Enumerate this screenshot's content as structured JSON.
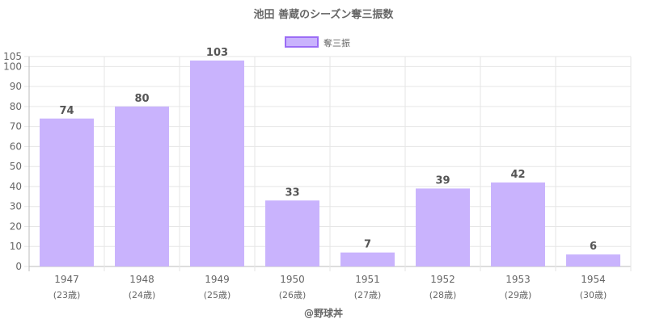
{
  "chart_data": {
    "type": "bar",
    "title": "池田 善蔵のシーズン奪三振数",
    "categories": [
      "1947",
      "1948",
      "1949",
      "1950",
      "1951",
      "1952",
      "1953",
      "1954"
    ],
    "sublabels": [
      "(23歳)",
      "(24歳)",
      "(25歳)",
      "(26歳)",
      "(27歳)",
      "(28歳)",
      "(29歳)",
      "(30歳)"
    ],
    "series": [
      {
        "name": "奪三振",
        "values": [
          74,
          80,
          103,
          33,
          7,
          39,
          42,
          6
        ]
      }
    ],
    "yticks": [
      0,
      10,
      20,
      30,
      40,
      50,
      60,
      70,
      80,
      90,
      100,
      105
    ],
    "ylim": [
      0,
      105
    ],
    "grid": true,
    "legend_position": "top-center",
    "colors": {
      "bar_fill": "#c9b3fd",
      "bar_border": "#9b6cf5",
      "grid": "#e6e6e6",
      "axis": "#bbbbbb"
    }
  },
  "footer": {
    "credit": "@野球丼"
  }
}
